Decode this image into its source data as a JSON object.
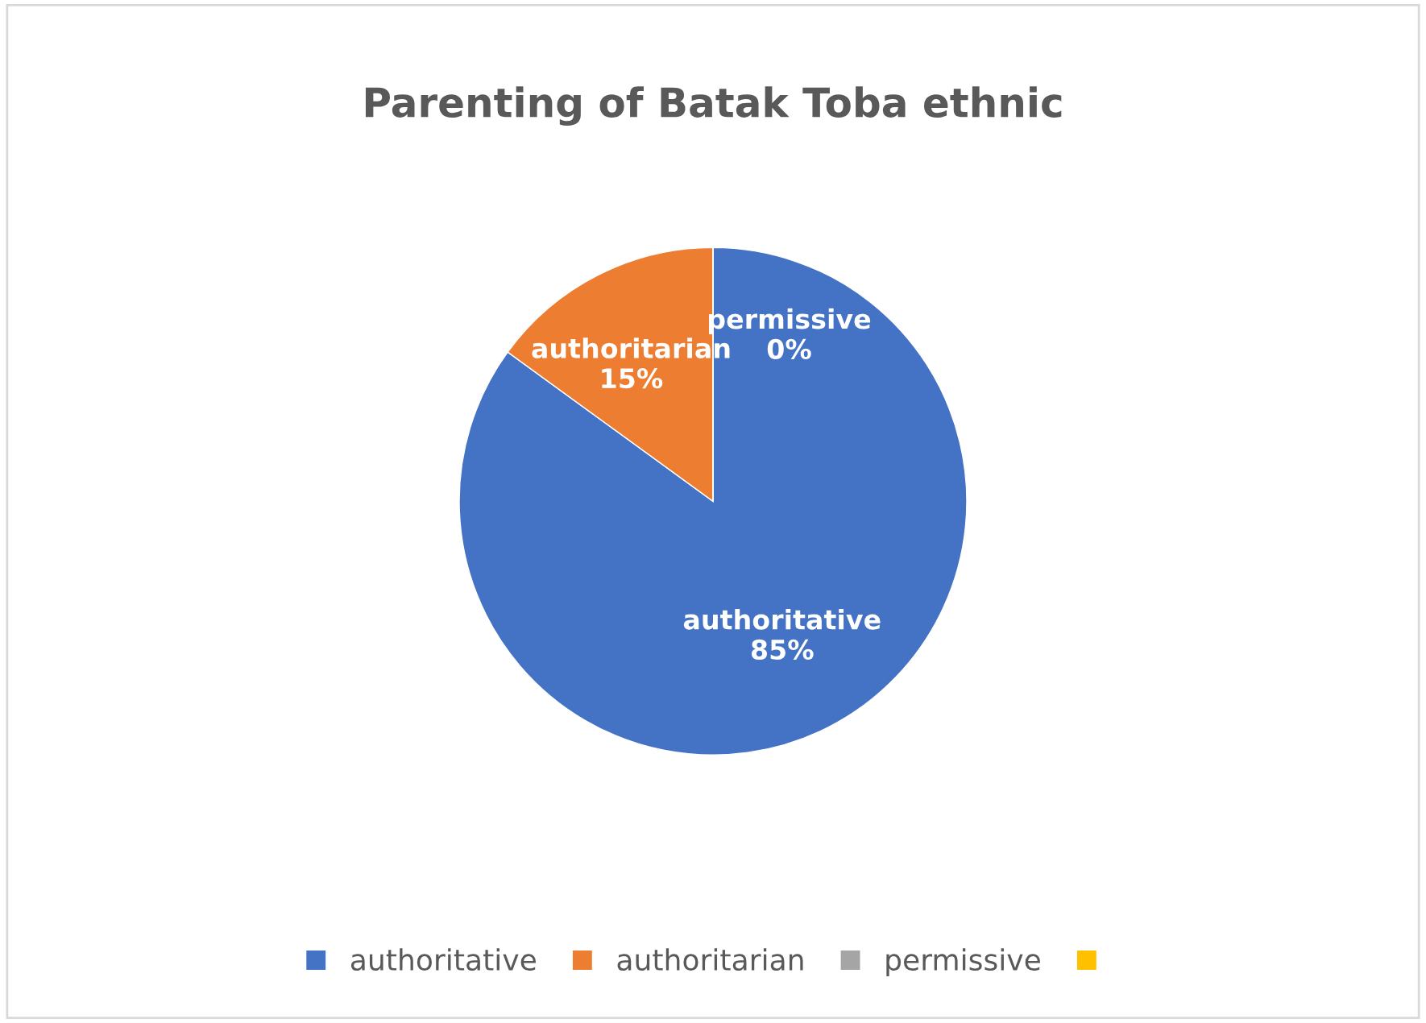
{
  "chart_data": {
    "type": "pie",
    "title": "Parenting of Batak Toba ethnic",
    "categories": [
      "authoritative",
      "authoritarian",
      "permissive",
      null
    ],
    "values": [
      85,
      15,
      0,
      0
    ],
    "colors": [
      "#4472c4",
      "#ed7d31",
      "#a5a5a5",
      "#ffc000"
    ],
    "value_labels": [
      "85%",
      "15%",
      "0%",
      null
    ],
    "legend": "bottom"
  }
}
